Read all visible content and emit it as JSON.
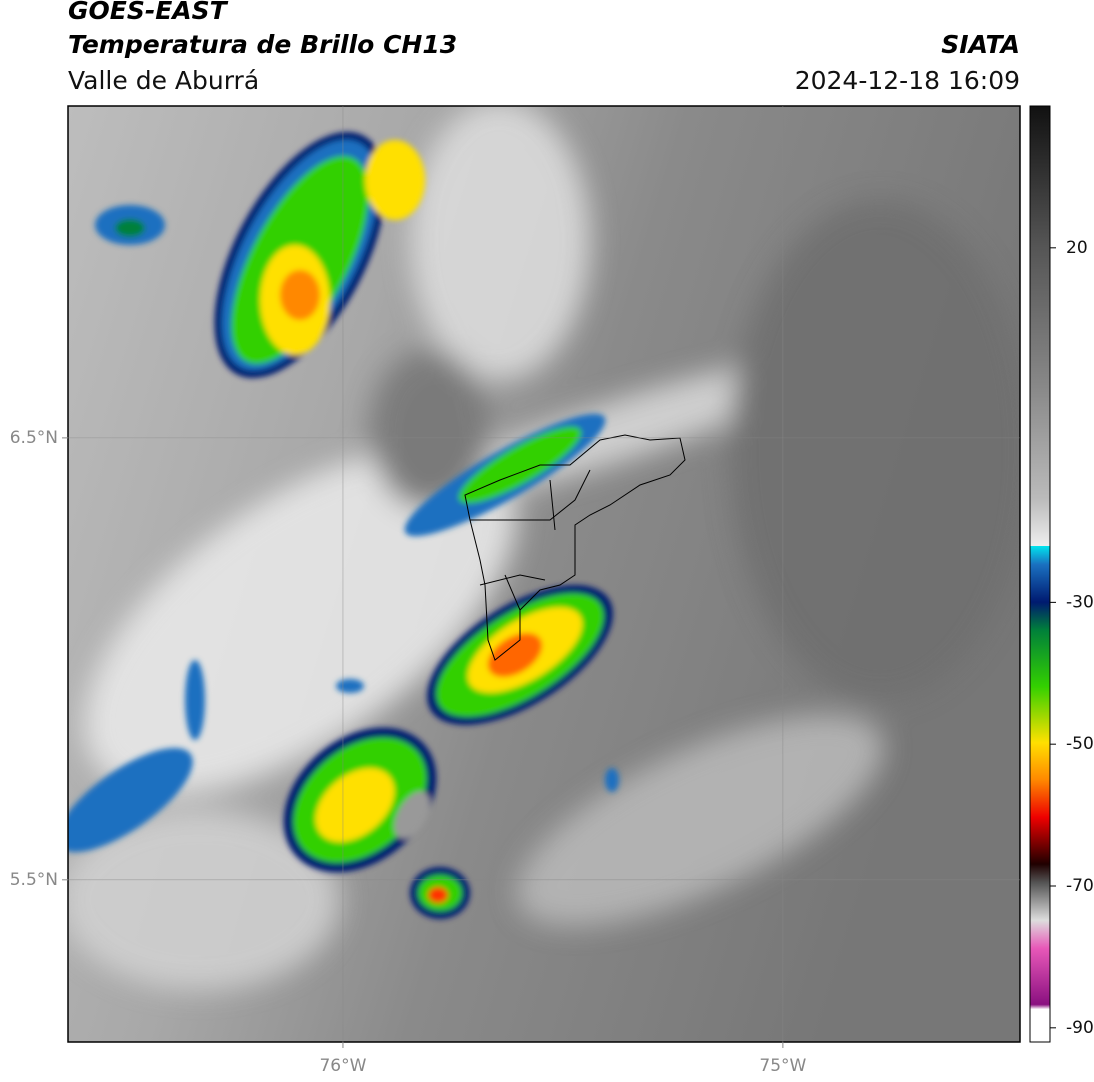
{
  "header": {
    "title": "GOES-EAST",
    "subtitle": "Temperatura de Brillo CH13",
    "region": "Valle de Aburrá",
    "source": "SIATA",
    "datetime": "2024-12-18 16:09"
  },
  "map": {
    "lonlim": [
      -76.625,
      -74.461
    ],
    "latlim": [
      5.133,
      7.251
    ],
    "lonticks": [
      {
        "value": -76,
        "label": "76°W"
      },
      {
        "value": -75,
        "label": "75°W"
      }
    ],
    "latticks": [
      {
        "value": 6.5,
        "label": "6.5°N"
      },
      {
        "value": 5.5,
        "label": "5.5°N"
      }
    ],
    "grid": true
  },
  "colorbar": {
    "lim": [
      -92,
      40
    ],
    "ticks": [
      20,
      -30,
      -50,
      -70,
      -90
    ]
  }
}
